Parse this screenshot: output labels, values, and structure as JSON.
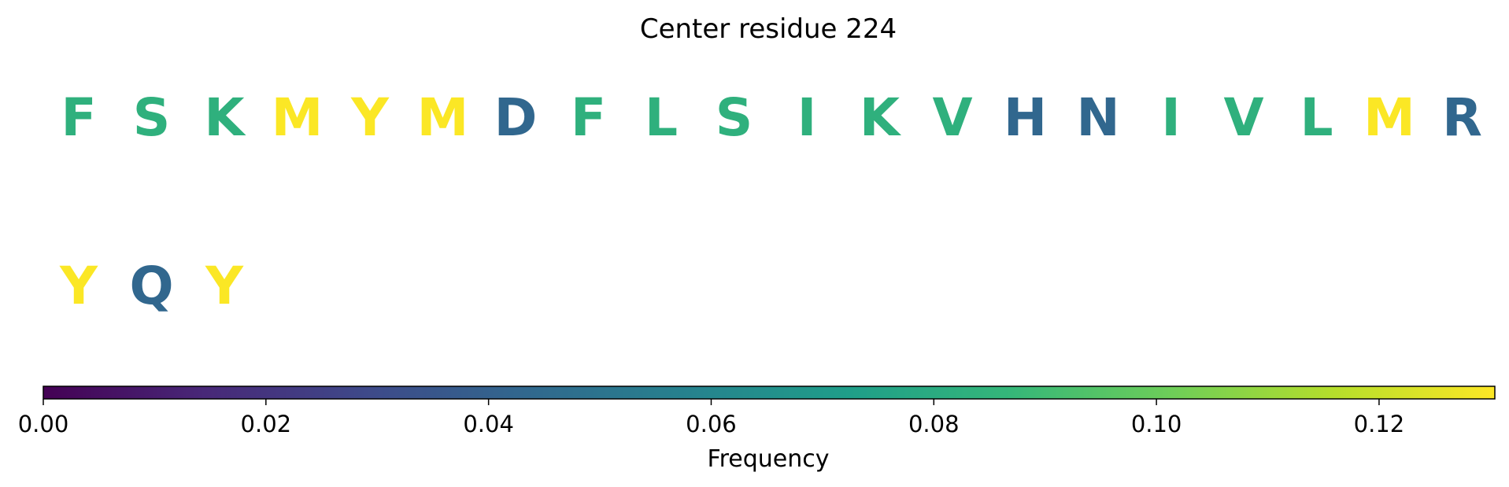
{
  "chart_data": {
    "type": "heatmap",
    "title": "Center residue 224",
    "colormap": "viridis",
    "colormap_stops": [
      "#440154",
      "#482878",
      "#3e4989",
      "#31688e",
      "#26828e",
      "#1f9e89",
      "#35b779",
      "#6ece58",
      "#b5de2b",
      "#fde725"
    ],
    "residues": [
      {
        "letter": "F",
        "value": 0.083
      },
      {
        "letter": "S",
        "value": 0.083
      },
      {
        "letter": "K",
        "value": 0.083
      },
      {
        "letter": "M",
        "value": 0.13
      },
      {
        "letter": "Y",
        "value": 0.13
      },
      {
        "letter": "M",
        "value": 0.13
      },
      {
        "letter": "D",
        "value": 0.043
      },
      {
        "letter": "F",
        "value": 0.083
      },
      {
        "letter": "L",
        "value": 0.083
      },
      {
        "letter": "S",
        "value": 0.083
      },
      {
        "letter": "I",
        "value": 0.083
      },
      {
        "letter": "K",
        "value": 0.083
      },
      {
        "letter": "V",
        "value": 0.083
      },
      {
        "letter": "H",
        "value": 0.043
      },
      {
        "letter": "N",
        "value": 0.043
      },
      {
        "letter": "I",
        "value": 0.083
      },
      {
        "letter": "V",
        "value": 0.083
      },
      {
        "letter": "L",
        "value": 0.083
      },
      {
        "letter": "M",
        "value": 0.13
      },
      {
        "letter": "R",
        "value": 0.043
      },
      {
        "letter": "Y",
        "value": 0.13
      },
      {
        "letter": "Q",
        "value": 0.043
      },
      {
        "letter": "Y",
        "value": 0.13
      }
    ],
    "per_row": 20,
    "colorbar": {
      "label": "Frequency",
      "range": [
        0,
        0.1304
      ],
      "ticks": [
        0,
        0.02,
        0.04,
        0.06,
        0.08,
        0.1,
        0.12
      ],
      "tick_labels": [
        "0.00",
        "0.02",
        "0.04",
        "0.06",
        "0.08",
        "0.10",
        "0.12"
      ],
      "orientation": "horizontal",
      "placement": "bottom"
    }
  }
}
